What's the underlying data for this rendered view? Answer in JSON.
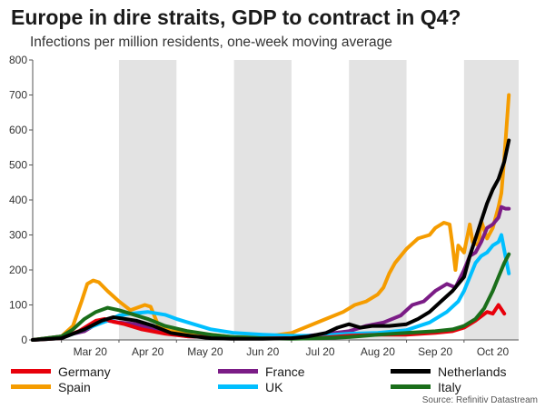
{
  "title": "Europe in dire straits, GDP to contract in Q4?",
  "subtitle": "Infections per million residents, one-week moving average",
  "source": "Source: Refinitiv Datastream",
  "chart_data": {
    "type": "line",
    "title": "Europe in dire straits, GDP to contract in Q4?",
    "subtitle": "Infections per million residents, one-week moving average",
    "xlabel": "",
    "ylabel": "",
    "ylim": [
      0,
      800
    ],
    "yticks": [
      0,
      100,
      200,
      300,
      400,
      500,
      600,
      700,
      800
    ],
    "x_unit": "month index (0 = start of March 2020)",
    "xlim": [
      -0.5,
      7.95
    ],
    "month_labels": [
      "Mar 20",
      "Apr 20",
      "May 20",
      "Jun 20",
      "Jul 20",
      "Aug 20",
      "Sep 20",
      "Oct 20"
    ],
    "shaded_months": [
      1,
      3,
      5,
      7
    ],
    "grid": false,
    "legend_position": "bottom",
    "series": [
      {
        "name": "Germany",
        "color": "#e8000b",
        "points": [
          [
            -0.5,
            0
          ],
          [
            0,
            5
          ],
          [
            0.3,
            25
          ],
          [
            0.5,
            45
          ],
          [
            0.6,
            55
          ],
          [
            0.75,
            60
          ],
          [
            0.9,
            52
          ],
          [
            1.1,
            45
          ],
          [
            1.4,
            30
          ],
          [
            1.8,
            18
          ],
          [
            2.2,
            10
          ],
          [
            2.6,
            8
          ],
          [
            3.0,
            5
          ],
          [
            3.5,
            5
          ],
          [
            4.0,
            5
          ],
          [
            4.5,
            6
          ],
          [
            5.0,
            12
          ],
          [
            5.5,
            15
          ],
          [
            6.0,
            15
          ],
          [
            6.5,
            20
          ],
          [
            6.8,
            25
          ],
          [
            7.0,
            35
          ],
          [
            7.2,
            55
          ],
          [
            7.4,
            80
          ],
          [
            7.5,
            75
          ],
          [
            7.6,
            100
          ],
          [
            7.7,
            75
          ]
        ]
      },
      {
        "name": "Spain",
        "color": "#f59c00",
        "points": [
          [
            -0.5,
            0
          ],
          [
            0,
            10
          ],
          [
            0.2,
            40
          ],
          [
            0.35,
            110
          ],
          [
            0.45,
            160
          ],
          [
            0.55,
            170
          ],
          [
            0.65,
            165
          ],
          [
            0.8,
            140
          ],
          [
            1.0,
            110
          ],
          [
            1.2,
            85
          ],
          [
            1.45,
            100
          ],
          [
            1.55,
            95
          ],
          [
            1.7,
            35
          ],
          [
            1.9,
            25
          ],
          [
            2.2,
            20
          ],
          [
            2.6,
            15
          ],
          [
            3.0,
            8
          ],
          [
            3.5,
            8
          ],
          [
            4.0,
            20
          ],
          [
            4.3,
            40
          ],
          [
            4.6,
            60
          ],
          [
            4.9,
            80
          ],
          [
            5.1,
            100
          ],
          [
            5.3,
            110
          ],
          [
            5.5,
            130
          ],
          [
            5.6,
            150
          ],
          [
            5.7,
            190
          ],
          [
            5.8,
            220
          ],
          [
            6.0,
            260
          ],
          [
            6.2,
            290
          ],
          [
            6.4,
            300
          ],
          [
            6.5,
            320
          ],
          [
            6.65,
            335
          ],
          [
            6.75,
            330
          ],
          [
            6.8,
            270
          ],
          [
            6.85,
            200
          ],
          [
            6.9,
            270
          ],
          [
            7.0,
            250
          ],
          [
            7.1,
            330
          ],
          [
            7.15,
            280
          ],
          [
            7.25,
            270
          ],
          [
            7.3,
            340
          ],
          [
            7.4,
            290
          ],
          [
            7.5,
            320
          ],
          [
            7.6,
            380
          ],
          [
            7.65,
            420
          ],
          [
            7.7,
            520
          ],
          [
            7.78,
            700
          ]
        ]
      },
      {
        "name": "France",
        "color": "#7b1c86",
        "points": [
          [
            -0.5,
            0
          ],
          [
            0,
            10
          ],
          [
            0.4,
            25
          ],
          [
            0.6,
            45
          ],
          [
            0.8,
            55
          ],
          [
            1.0,
            50
          ],
          [
            1.3,
            45
          ],
          [
            1.5,
            35
          ],
          [
            1.8,
            20
          ],
          [
            2.2,
            10
          ],
          [
            2.6,
            8
          ],
          [
            3.0,
            5
          ],
          [
            3.5,
            5
          ],
          [
            4.0,
            8
          ],
          [
            4.5,
            15
          ],
          [
            5.0,
            25
          ],
          [
            5.3,
            40
          ],
          [
            5.6,
            50
          ],
          [
            5.9,
            70
          ],
          [
            6.1,
            100
          ],
          [
            6.3,
            110
          ],
          [
            6.5,
            140
          ],
          [
            6.7,
            160
          ],
          [
            6.85,
            150
          ],
          [
            7.0,
            200
          ],
          [
            7.1,
            240
          ],
          [
            7.2,
            250
          ],
          [
            7.3,
            280
          ],
          [
            7.4,
            320
          ],
          [
            7.5,
            330
          ],
          [
            7.6,
            350
          ],
          [
            7.65,
            380
          ],
          [
            7.72,
            375
          ],
          [
            7.78,
            375
          ]
        ]
      },
      {
        "name": "UK",
        "color": "#00bfff",
        "points": [
          [
            -0.5,
            0
          ],
          [
            0,
            5
          ],
          [
            0.4,
            30
          ],
          [
            0.8,
            55
          ],
          [
            1.0,
            70
          ],
          [
            1.2,
            75
          ],
          [
            1.5,
            80
          ],
          [
            1.8,
            72
          ],
          [
            2.0,
            60
          ],
          [
            2.3,
            45
          ],
          [
            2.6,
            30
          ],
          [
            3.0,
            20
          ],
          [
            3.5,
            15
          ],
          [
            4.0,
            12
          ],
          [
            4.5,
            12
          ],
          [
            5.0,
            18
          ],
          [
            5.5,
            20
          ],
          [
            6.0,
            28
          ],
          [
            6.4,
            50
          ],
          [
            6.7,
            80
          ],
          [
            6.9,
            110
          ],
          [
            7.0,
            140
          ],
          [
            7.1,
            180
          ],
          [
            7.2,
            220
          ],
          [
            7.3,
            240
          ],
          [
            7.4,
            250
          ],
          [
            7.5,
            270
          ],
          [
            7.6,
            280
          ],
          [
            7.65,
            300
          ],
          [
            7.72,
            240
          ],
          [
            7.78,
            190
          ]
        ]
      },
      {
        "name": "Netherlands",
        "color": "#000000",
        "points": [
          [
            -0.5,
            0
          ],
          [
            0,
            5
          ],
          [
            0.4,
            30
          ],
          [
            0.7,
            55
          ],
          [
            0.9,
            65
          ],
          [
            1.1,
            60
          ],
          [
            1.3,
            55
          ],
          [
            1.6,
            40
          ],
          [
            1.9,
            20
          ],
          [
            2.3,
            10
          ],
          [
            2.6,
            5
          ],
          [
            3.0,
            3
          ],
          [
            3.5,
            3
          ],
          [
            4.0,
            5
          ],
          [
            4.3,
            10
          ],
          [
            4.6,
            20
          ],
          [
            4.8,
            35
          ],
          [
            5.0,
            45
          ],
          [
            5.2,
            35
          ],
          [
            5.4,
            40
          ],
          [
            5.7,
            40
          ],
          [
            6.0,
            45
          ],
          [
            6.2,
            60
          ],
          [
            6.4,
            80
          ],
          [
            6.6,
            110
          ],
          [
            6.8,
            140
          ],
          [
            7.0,
            180
          ],
          [
            7.1,
            240
          ],
          [
            7.2,
            290
          ],
          [
            7.3,
            340
          ],
          [
            7.4,
            390
          ],
          [
            7.5,
            430
          ],
          [
            7.6,
            460
          ],
          [
            7.7,
            510
          ],
          [
            7.78,
            570
          ]
        ]
      },
      {
        "name": "Italy",
        "color": "#1a6e1a",
        "points": [
          [
            -0.5,
            0
          ],
          [
            0,
            10
          ],
          [
            0.2,
            30
          ],
          [
            0.4,
            60
          ],
          [
            0.6,
            80
          ],
          [
            0.8,
            92
          ],
          [
            1.0,
            85
          ],
          [
            1.2,
            75
          ],
          [
            1.5,
            60
          ],
          [
            1.8,
            40
          ],
          [
            2.2,
            25
          ],
          [
            2.6,
            15
          ],
          [
            3.0,
            8
          ],
          [
            3.5,
            5
          ],
          [
            4.0,
            3
          ],
          [
            4.5,
            5
          ],
          [
            5.0,
            8
          ],
          [
            5.5,
            15
          ],
          [
            6.0,
            20
          ],
          [
            6.5,
            25
          ],
          [
            6.8,
            30
          ],
          [
            7.0,
            40
          ],
          [
            7.2,
            60
          ],
          [
            7.35,
            90
          ],
          [
            7.5,
            140
          ],
          [
            7.6,
            180
          ],
          [
            7.7,
            220
          ],
          [
            7.78,
            245
          ]
        ]
      }
    ]
  }
}
